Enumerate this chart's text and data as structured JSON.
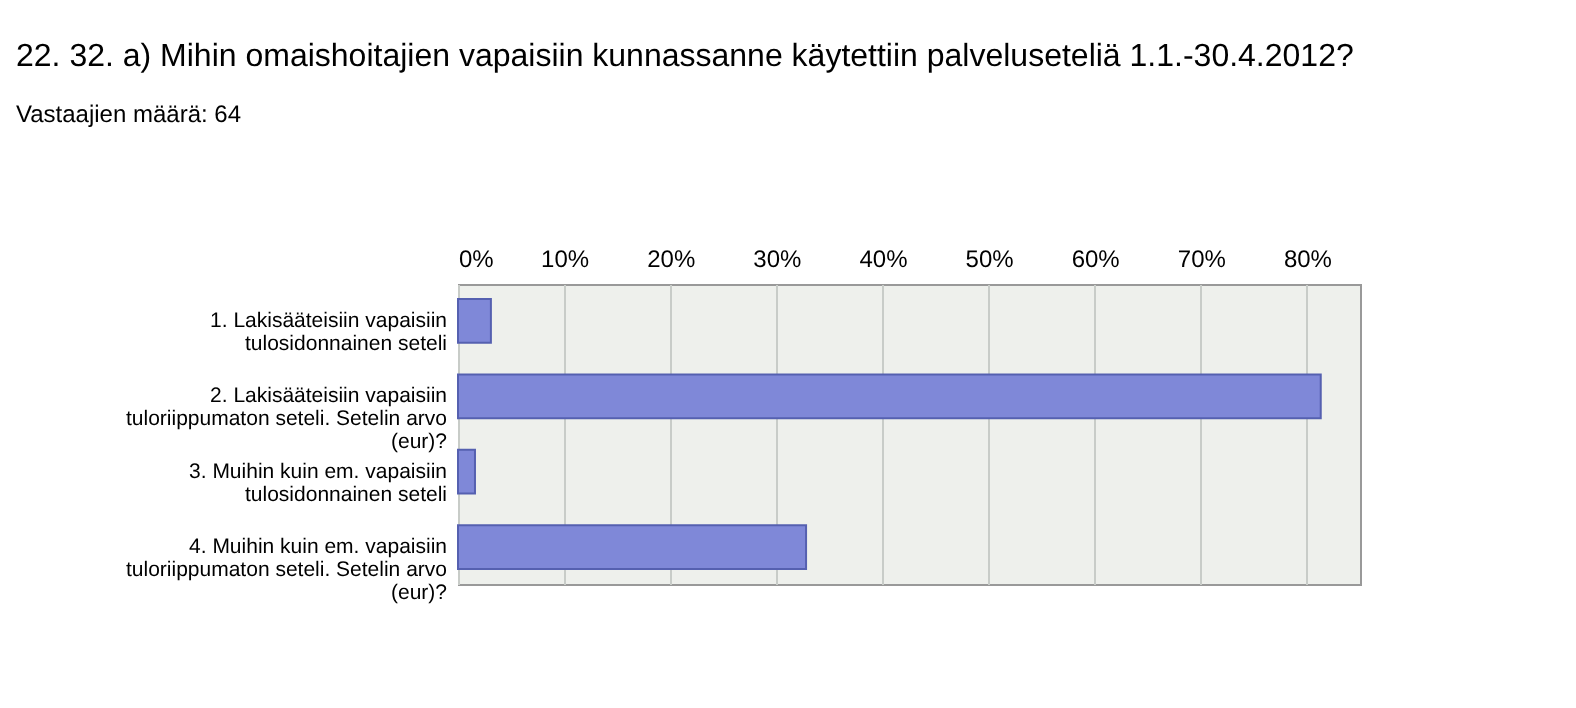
{
  "chart_data": {
    "type": "bar",
    "orientation": "horizontal",
    "title": "22. 32. a) Mihin omaishoitajien vapaisiin kunnassanne käytettiin palveluseteliä 1.1.-30.4.2012?",
    "subtitle": "Vastaajien määrä: 64",
    "categories": [
      "1. Lakisääteisiin vapaisiin tulosidonnainen seteli",
      "2. Lakisääteisiin vapaisiin tuloriippumaton seteli. Setelin arvo (eur)?",
      "3. Muihin kuin em. vapaisiin tulosidonnainen seteli",
      "4. Muihin kuin em. vapaisiin tuloriippumaton seteli. Setelin arvo (eur)?"
    ],
    "values": [
      3.1,
      81.3,
      1.6,
      32.8
    ],
    "color": "#7f88d8",
    "xlim": [
      0,
      85
    ],
    "xticks": [
      {
        "value": 0,
        "label": "0%"
      },
      {
        "value": 10,
        "label": "10%"
      },
      {
        "value": 20,
        "label": "20%"
      },
      {
        "value": 30,
        "label": "30%"
      },
      {
        "value": 40,
        "label": "40%"
      },
      {
        "value": 50,
        "label": "50%"
      },
      {
        "value": 60,
        "label": "60%"
      },
      {
        "value": 70,
        "label": "70%"
      },
      {
        "value": 80,
        "label": "80%"
      }
    ],
    "grid": "x"
  }
}
